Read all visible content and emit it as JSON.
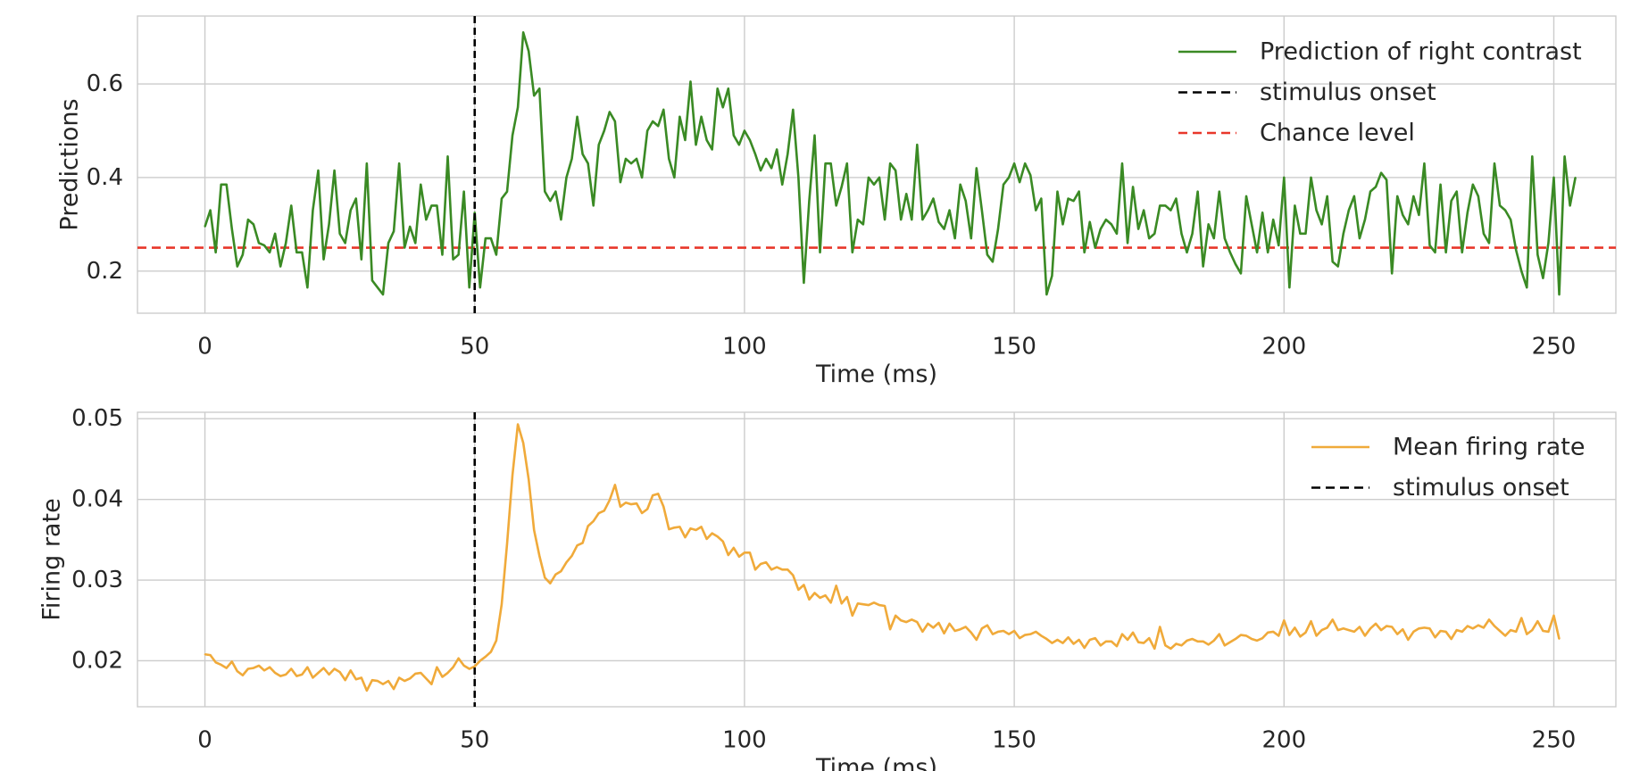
{
  "chart_data": [
    {
      "type": "line",
      "title": "",
      "xlabel": "Time (ms)",
      "ylabel": "Predictions",
      "xlim": [
        -12.5,
        261.5
      ],
      "ylim": [
        0.11,
        0.745
      ],
      "xticks": [
        0,
        50,
        100,
        150,
        200,
        250
      ],
      "yticks": [
        0.2,
        0.4,
        0.6
      ],
      "xtick_labels": [
        "0",
        "50",
        "100",
        "150",
        "200",
        "250"
      ],
      "ytick_labels": [
        "0.2",
        "0.4",
        "0.6"
      ],
      "grid": true,
      "legend_position": "top-right",
      "colors": {
        "prediction": "#3a8a24",
        "onset": "#000000",
        "chance": "#e8372a"
      },
      "series": [
        {
          "name": "Prediction of right contrast",
          "kind": "line",
          "x_start": 0,
          "x_step": 1,
          "values": [
            0.295,
            0.33,
            0.24,
            0.385,
            0.385,
            0.29,
            0.21,
            0.235,
            0.31,
            0.3,
            0.26,
            0.255,
            0.24,
            0.28,
            0.21,
            0.26,
            0.34,
            0.24,
            0.24,
            0.165,
            0.33,
            0.415,
            0.225,
            0.3,
            0.415,
            0.28,
            0.26,
            0.33,
            0.355,
            0.225,
            0.43,
            0.18,
            0.165,
            0.15,
            0.26,
            0.285,
            0.43,
            0.25,
            0.295,
            0.26,
            0.385,
            0.31,
            0.34,
            0.34,
            0.235,
            0.445,
            0.225,
            0.235,
            0.37,
            0.165,
            0.325,
            0.165,
            0.27,
            0.27,
            0.235,
            0.355,
            0.37,
            0.49,
            0.55,
            0.71,
            0.67,
            0.575,
            0.59,
            0.37,
            0.35,
            0.37,
            0.31,
            0.4,
            0.44,
            0.53,
            0.45,
            0.43,
            0.34,
            0.47,
            0.5,
            0.54,
            0.52,
            0.39,
            0.44,
            0.43,
            0.44,
            0.4,
            0.5,
            0.52,
            0.51,
            0.545,
            0.44,
            0.4,
            0.53,
            0.48,
            0.605,
            0.47,
            0.53,
            0.48,
            0.46,
            0.59,
            0.55,
            0.59,
            0.49,
            0.47,
            0.5,
            0.48,
            0.45,
            0.415,
            0.44,
            0.42,
            0.46,
            0.385,
            0.45,
            0.545,
            0.4,
            0.175,
            0.35,
            0.49,
            0.24,
            0.43,
            0.43,
            0.34,
            0.38,
            0.43,
            0.24,
            0.31,
            0.3,
            0.4,
            0.385,
            0.4,
            0.31,
            0.43,
            0.415,
            0.31,
            0.365,
            0.31,
            0.47,
            0.31,
            0.33,
            0.355,
            0.305,
            0.29,
            0.33,
            0.27,
            0.385,
            0.35,
            0.27,
            0.42,
            0.33,
            0.235,
            0.22,
            0.29,
            0.385,
            0.4,
            0.43,
            0.39,
            0.43,
            0.405,
            0.33,
            0.355,
            0.15,
            0.19,
            0.37,
            0.3,
            0.355,
            0.35,
            0.37,
            0.24,
            0.305,
            0.25,
            0.29,
            0.31,
            0.3,
            0.28,
            0.43,
            0.26,
            0.38,
            0.29,
            0.33,
            0.27,
            0.28,
            0.34,
            0.34,
            0.33,
            0.355,
            0.28,
            0.24,
            0.28,
            0.37,
            0.21,
            0.3,
            0.27,
            0.37,
            0.27,
            0.24,
            0.215,
            0.195,
            0.36,
            0.3,
            0.24,
            0.325,
            0.24,
            0.31,
            0.255,
            0.4,
            0.165,
            0.34,
            0.28,
            0.28,
            0.4,
            0.33,
            0.3,
            0.36,
            0.22,
            0.21,
            0.28,
            0.33,
            0.36,
            0.27,
            0.31,
            0.37,
            0.38,
            0.41,
            0.395,
            0.195,
            0.36,
            0.32,
            0.3,
            0.36,
            0.32,
            0.43,
            0.255,
            0.24,
            0.385,
            0.24,
            0.35,
            0.37,
            0.24,
            0.325,
            0.385,
            0.36,
            0.28,
            0.26,
            0.43,
            0.34,
            0.33,
            0.31,
            0.245,
            0.2,
            0.165,
            0.445,
            0.235,
            0.185,
            0.26,
            0.4,
            0.15,
            0.445,
            0.34,
            0.4
          ]
        },
        {
          "name": "stimulus onset",
          "kind": "vline",
          "x": 50,
          "dashed": true
        },
        {
          "name": "Chance level",
          "kind": "hline",
          "y": 0.25,
          "dashed": true
        }
      ]
    },
    {
      "type": "line",
      "title": "",
      "xlabel": "Time (ms)",
      "ylabel": "Firing rate",
      "xlim": [
        -12.5,
        261.5
      ],
      "ylim": [
        0.0143,
        0.0508
      ],
      "xticks": [
        0,
        50,
        100,
        150,
        200,
        250
      ],
      "yticks": [
        0.02,
        0.03,
        0.04,
        0.05
      ],
      "xtick_labels": [
        "0",
        "50",
        "100",
        "150",
        "200",
        "250"
      ],
      "ytick_labels": [
        "0.02",
        "0.03",
        "0.04",
        "0.05"
      ],
      "grid": true,
      "legend_position": "top-right",
      "colors": {
        "rate": "#f0aa3a",
        "onset": "#000000"
      },
      "series": [
        {
          "name": "Mean firing rate",
          "kind": "line",
          "x_start": 0,
          "x_step": 1,
          "values": [
            0.0208,
            0.0207,
            0.0198,
            0.0195,
            0.0191,
            0.0199,
            0.0187,
            0.0182,
            0.019,
            0.0191,
            0.0194,
            0.0188,
            0.0192,
            0.0185,
            0.0181,
            0.0183,
            0.019,
            0.0181,
            0.0183,
            0.0192,
            0.0179,
            0.0185,
            0.0191,
            0.0183,
            0.019,
            0.0186,
            0.0176,
            0.0188,
            0.0177,
            0.0179,
            0.0163,
            0.0176,
            0.0175,
            0.0171,
            0.0175,
            0.0165,
            0.0179,
            0.0175,
            0.0178,
            0.0184,
            0.0185,
            0.0178,
            0.0171,
            0.0192,
            0.018,
            0.0185,
            0.0192,
            0.0203,
            0.0194,
            0.019,
            0.0193,
            0.02,
            0.0205,
            0.0211,
            0.0225,
            0.027,
            0.0345,
            0.043,
            0.0493,
            0.047,
            0.0425,
            0.0362,
            0.033,
            0.0303,
            0.0296,
            0.0307,
            0.0311,
            0.0322,
            0.033,
            0.0343,
            0.0346,
            0.0367,
            0.0373,
            0.0383,
            0.0386,
            0.0399,
            0.0418,
            0.0391,
            0.0396,
            0.0394,
            0.0395,
            0.0383,
            0.0388,
            0.0405,
            0.0407,
            0.0391,
            0.0363,
            0.0365,
            0.0366,
            0.0353,
            0.0364,
            0.0362,
            0.0366,
            0.0351,
            0.0358,
            0.0354,
            0.0348,
            0.0331,
            0.034,
            0.0329,
            0.0334,
            0.0334,
            0.0313,
            0.032,
            0.0322,
            0.0313,
            0.0316,
            0.0313,
            0.0313,
            0.0306,
            0.0288,
            0.0294,
            0.0276,
            0.0284,
            0.0278,
            0.0281,
            0.0272,
            0.0293,
            0.0271,
            0.0279,
            0.0256,
            0.0271,
            0.027,
            0.0269,
            0.0272,
            0.0269,
            0.0268,
            0.0239,
            0.0256,
            0.025,
            0.0248,
            0.0251,
            0.0248,
            0.0236,
            0.0246,
            0.0241,
            0.0247,
            0.0234,
            0.0246,
            0.0237,
            0.0239,
            0.0242,
            0.0235,
            0.0226,
            0.024,
            0.0244,
            0.0233,
            0.0236,
            0.0237,
            0.0233,
            0.0237,
            0.0228,
            0.0232,
            0.0233,
            0.0236,
            0.0231,
            0.0227,
            0.0222,
            0.0226,
            0.0222,
            0.0229,
            0.0221,
            0.0226,
            0.0216,
            0.0226,
            0.0228,
            0.0219,
            0.0224,
            0.0224,
            0.0218,
            0.0233,
            0.0226,
            0.0235,
            0.0223,
            0.0222,
            0.0228,
            0.0215,
            0.0242,
            0.0219,
            0.0215,
            0.0221,
            0.0219,
            0.0225,
            0.0227,
            0.0224,
            0.0224,
            0.022,
            0.0225,
            0.0233,
            0.0219,
            0.0223,
            0.0227,
            0.0232,
            0.0231,
            0.0227,
            0.0225,
            0.0228,
            0.0235,
            0.0236,
            0.0231,
            0.025,
            0.0232,
            0.0241,
            0.023,
            0.0235,
            0.0249,
            0.0231,
            0.0238,
            0.0241,
            0.0251,
            0.0238,
            0.024,
            0.0238,
            0.0236,
            0.0242,
            0.0231,
            0.024,
            0.0246,
            0.0238,
            0.0243,
            0.0242,
            0.0233,
            0.0239,
            0.0226,
            0.0236,
            0.024,
            0.0241,
            0.024,
            0.0229,
            0.0237,
            0.0236,
            0.0227,
            0.0238,
            0.0236,
            0.0243,
            0.024,
            0.0244,
            0.0241,
            0.0251,
            0.0243,
            0.0237,
            0.0231,
            0.0238,
            0.0236,
            0.0253,
            0.0233,
            0.0238,
            0.0249,
            0.0237,
            0.0236,
            0.0256,
            0.0227
          ]
        },
        {
          "name": "stimulus onset",
          "kind": "vline",
          "x": 50,
          "dashed": true
        }
      ]
    }
  ]
}
